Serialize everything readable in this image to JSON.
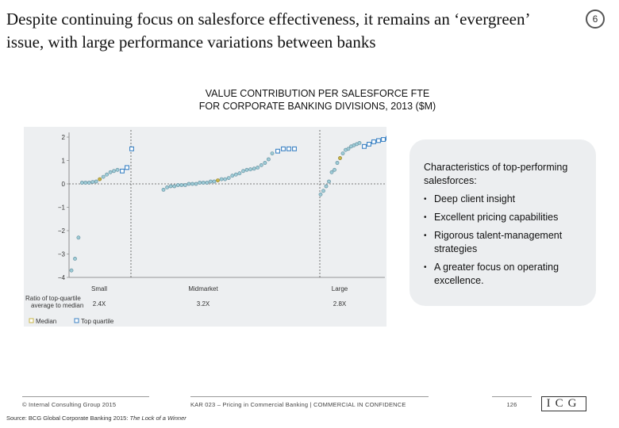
{
  "slide": {
    "title": "Despite continuing focus on salesforce effectiveness, it remains an ‘evergreen’ issue, with large performance variations between banks",
    "page_badge": "6"
  },
  "chart_heading": {
    "line1": "VALUE CONTRIBUTION PER SALESFORCE FTE",
    "line2": "FOR CORPORATE BANKING DIVISIONS, 2013 ($M)"
  },
  "callout": {
    "heading": "Characteristics of top-performing salesforces:",
    "bullets": [
      "Deep client insight",
      "Excellent pricing capabilities",
      "Rigorous talent-management strategies",
      "A greater focus on operating excellence."
    ]
  },
  "footer": {
    "copyright": "© Internal Consulting Group 2015",
    "project": "KAR 023 – Pricing in Commercial Banking | COMMERCIAL IN CONFIDENCE",
    "page_number": "126",
    "logo": "ICG",
    "source_label": "Source: BCG Global Corporate Banking 2015: ",
    "source_title": "The Lock of a Winner"
  },
  "colors": {
    "dot_fill": "#9ecbd6",
    "dot_stroke": "#5d8a9a",
    "top_quartile": "#3b82c4",
    "median": "#c8b447",
    "plot_bg": "#edeff1"
  },
  "chart_data": {
    "type": "scatter",
    "ylim": [
      -4,
      2.2
    ],
    "y_ticks": [
      "2",
      "1",
      "0",
      "−1",
      "−2",
      "−3",
      "−4"
    ],
    "y_tick_values": [
      2,
      1,
      0,
      -1,
      -2,
      -3,
      -4
    ],
    "grid": false,
    "zero_line": "dashed",
    "legend": {
      "ratio_label": "Ratio of top-quartile average to median",
      "median": "Median",
      "top_quartile": "Top quartile"
    },
    "segments": [
      {
        "name": "Small",
        "ratio": "2.4X",
        "values": [
          -3.7,
          -3.2,
          -2.3,
          0.05,
          0.05,
          0.05,
          0.08,
          0.1,
          0.2,
          0.3,
          0.4,
          0.5,
          0.55,
          0.6
        ],
        "median_index": 8,
        "top_quartile_values": [
          0.55,
          0.7,
          1.5
        ]
      },
      {
        "name": "Midmarket",
        "ratio": "3.2X",
        "values": [
          -0.25,
          -0.15,
          -0.1,
          -0.1,
          -0.05,
          -0.05,
          -0.05,
          0,
          0,
          0,
          0.05,
          0.05,
          0.05,
          0.1,
          0.1,
          0.15,
          0.2,
          0.2,
          0.25,
          0.35,
          0.4,
          0.45,
          0.55,
          0.6,
          0.62,
          0.65,
          0.7,
          0.8,
          0.9,
          1.05,
          1.3
        ],
        "median_index": 15,
        "top_quartile_values": [
          1.4,
          1.5,
          1.5,
          1.5
        ]
      },
      {
        "name": "Large",
        "ratio": "2.8X",
        "values": [
          -0.45,
          -0.3,
          -0.1,
          0.1,
          0.5,
          0.6,
          0.9,
          1.1,
          1.3,
          1.45,
          1.5,
          1.6,
          1.65,
          1.7,
          1.75
        ],
        "median_index": 7,
        "top_quartile_values": [
          1.6,
          1.7,
          1.8,
          1.85,
          1.9,
          1.95
        ]
      }
    ]
  }
}
